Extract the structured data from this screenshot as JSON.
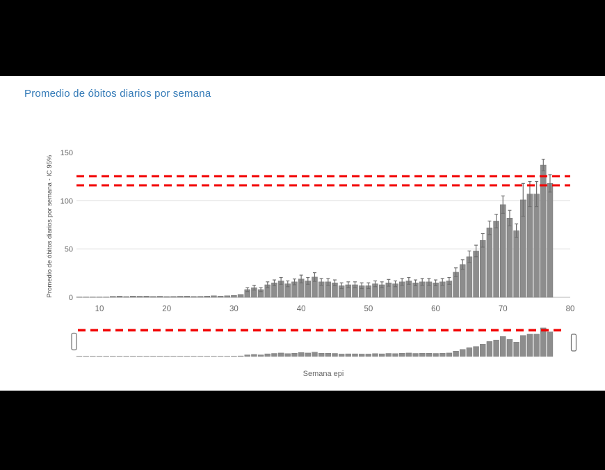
{
  "title": {
    "text": "Promedio de óbitos diarios por semana",
    "color": "#337ab7"
  },
  "colors": {
    "bar_fill": "#8d8d8d",
    "bar_stroke": "#757575",
    "error_bar": "#6f6f6f",
    "threshold_red": "#f20000",
    "grid": "#dcdcdc",
    "baseline": "#b4b4b4",
    "axis_text": "#666666",
    "axis_title_text": "#4a4a4a",
    "handle_fill": "#ffffff",
    "handle_stroke": "#707070",
    "panel_bg": "#ffffff",
    "letterbox_bg": "#000000"
  },
  "chart_data": {
    "type": "bar",
    "title": "Promedio de óbitos diarios por semana",
    "xlabel": "Semana epi",
    "ylabel": "Promedio de óbitos diarios por semana - IC 95%",
    "x_ticks": [
      10,
      20,
      30,
      40,
      50,
      60,
      70,
      80
    ],
    "y_ticks": [
      0,
      50,
      100,
      150
    ],
    "xlim": [
      6.5,
      80.5
    ],
    "ylim": [
      0,
      150
    ],
    "grid": "horizontal",
    "legend": "none",
    "threshold_lines": [
      125.5,
      116
    ],
    "weeks": [
      7,
      8,
      9,
      10,
      11,
      12,
      13,
      14,
      15,
      16,
      17,
      18,
      19,
      20,
      21,
      22,
      23,
      24,
      25,
      26,
      27,
      28,
      29,
      30,
      31,
      32,
      33,
      34,
      35,
      36,
      37,
      38,
      39,
      40,
      41,
      42,
      43,
      44,
      45,
      46,
      47,
      48,
      49,
      50,
      51,
      52,
      53,
      54,
      55,
      56,
      57,
      58,
      59,
      60,
      61,
      62,
      63,
      64,
      65,
      66,
      67,
      68,
      69,
      70,
      71,
      72,
      73,
      74,
      75,
      76,
      77
    ],
    "values": [
      0.3,
      0.3,
      0.4,
      0.3,
      0.4,
      1.0,
      1.2,
      0.8,
      1.3,
      1.1,
      1.2,
      0.9,
      1.1,
      0.8,
      0.9,
      1.1,
      1.2,
      0.9,
      1.0,
      1.3,
      1.6,
      1.3,
      1.6,
      2.0,
      3.0,
      8,
      10,
      8,
      13,
      15,
      17,
      14,
      16,
      19,
      17,
      21,
      16,
      16,
      15,
      12,
      13,
      13,
      12,
      12,
      14,
      13,
      15,
      14,
      16,
      17,
      15,
      16,
      16,
      15,
      16,
      17,
      26,
      34,
      42,
      48,
      59,
      72,
      79,
      96,
      82,
      69,
      101,
      107,
      107,
      137,
      118
    ],
    "ci": [
      0.3,
      0.3,
      0.3,
      0.3,
      0.3,
      0.5,
      0.5,
      0.5,
      0.5,
      0.5,
      0.5,
      0.5,
      0.5,
      0.5,
      0.5,
      0.5,
      0.5,
      0.5,
      0.5,
      0.5,
      0.5,
      0.5,
      0.5,
      0.5,
      1,
      2,
      2.5,
      2,
      3,
      3,
      3.5,
      3,
      3,
      4,
      3.5,
      4.5,
      3.5,
      3.5,
      3,
      3,
      3,
      3,
      3,
      3,
      3,
      3,
      3.5,
      3,
      3.5,
      3.5,
      3,
      3.5,
      3.5,
      3,
      3.5,
      3.5,
      4.5,
      5,
      6,
      6,
      7,
      7,
      7,
      9,
      8,
      7,
      17,
      13,
      13,
      6,
      9
    ],
    "navigator": {
      "threshold": 126,
      "selection": "full-range",
      "handle_count": 2
    }
  }
}
